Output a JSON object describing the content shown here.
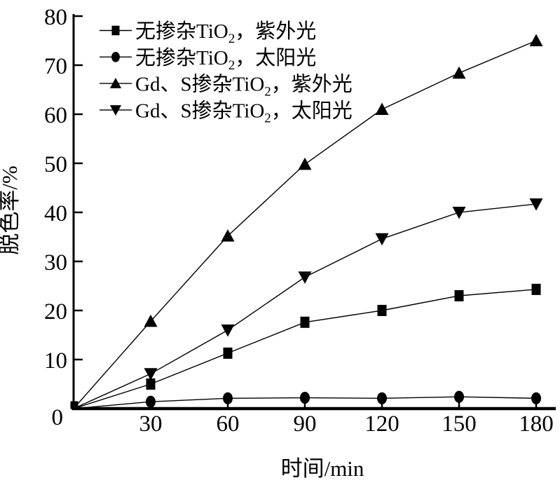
{
  "chart_data": {
    "type": "line",
    "title": "",
    "xlabel": "时间/min",
    "ylabel": "脱色率/%",
    "x": [
      0,
      30,
      60,
      90,
      120,
      150,
      180
    ],
    "xticks": [
      30,
      60,
      90,
      120,
      150,
      180
    ],
    "yticks": [
      0,
      10,
      20,
      30,
      40,
      50,
      60,
      70,
      80
    ],
    "xlim": [
      0,
      188
    ],
    "ylim": [
      0,
      80
    ],
    "grid": false,
    "legend_position": "upper-left",
    "line_color": "#000000",
    "background": "#ffffff",
    "series": [
      {
        "name": "无掺杂TiO2，紫外光",
        "label_parts": {
          "pre": "无掺杂TiO",
          "sub": "2",
          "post": "，紫外光"
        },
        "marker": "square",
        "values": [
          0,
          5,
          11.3,
          17.6,
          20,
          23,
          24.3
        ]
      },
      {
        "name": "无掺杂TiO2，太阳光",
        "label_parts": {
          "pre": "无掺杂TiO",
          "sub": "2",
          "post": "，太阳光"
        },
        "marker": "circle",
        "values": [
          0,
          1.4,
          2.1,
          2.2,
          2.1,
          2.4,
          2.1
        ]
      },
      {
        "name": "Gd、S掺杂TiO2，紫外光",
        "label_parts": {
          "pre": "Gd、S掺杂TiO",
          "sub": "2",
          "post": "，紫外光"
        },
        "marker": "triangle-up",
        "values": [
          0,
          17.8,
          35.2,
          49.8,
          61,
          68.4,
          75
        ]
      },
      {
        "name": "Gd、S掺杂TiO2，太阳光",
        "label_parts": {
          "pre": "Gd、S掺杂TiO",
          "sub": "2",
          "post": "，太阳光"
        },
        "marker": "triangle-down",
        "values": [
          0,
          7.1,
          16,
          26.8,
          34.6,
          40,
          41.7
        ]
      }
    ]
  }
}
